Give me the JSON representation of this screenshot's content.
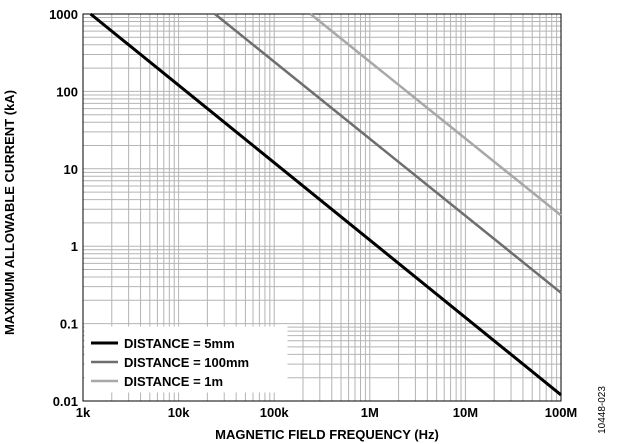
{
  "chart_data": {
    "type": "line",
    "title": "",
    "xlabel": "MAGNETIC FIELD FREQUENCY (Hz)",
    "ylabel": "MAXIMUM ALLOWABLE CURRENT (kA)",
    "x_scale": "log",
    "y_scale": "log",
    "xlim": [
      1000,
      100000000
    ],
    "ylim": [
      0.01,
      1000
    ],
    "x_ticks": [
      {
        "value": 1000,
        "label": "1k"
      },
      {
        "value": 10000,
        "label": "10k"
      },
      {
        "value": 100000,
        "label": "100k"
      },
      {
        "value": 1000000,
        "label": "1M"
      },
      {
        "value": 10000000,
        "label": "10M"
      },
      {
        "value": 100000000,
        "label": "100M"
      }
    ],
    "y_ticks": [
      {
        "value": 0.01,
        "label": "0.01"
      },
      {
        "value": 0.1,
        "label": "0.1"
      },
      {
        "value": 1,
        "label": "1"
      },
      {
        "value": 10,
        "label": "10"
      },
      {
        "value": 100,
        "label": "100"
      },
      {
        "value": 1000,
        "label": "1000"
      }
    ],
    "grid": true,
    "legend_position": "bottom-left",
    "series": [
      {
        "name": "DISTANCE = 5mm",
        "color": "#000000",
        "x": [
          1200,
          100000000
        ],
        "y": [
          1000,
          0.012
        ]
      },
      {
        "name": "DISTANCE = 100mm",
        "color": "#6e6e6e",
        "x": [
          24000,
          100000000
        ],
        "y": [
          1000,
          0.25
        ]
      },
      {
        "name": "DISTANCE = 1m",
        "color": "#a8a8a8",
        "x": [
          240000,
          100000000
        ],
        "y": [
          1000,
          2.5
        ]
      }
    ]
  },
  "figure_id": "10448-023"
}
